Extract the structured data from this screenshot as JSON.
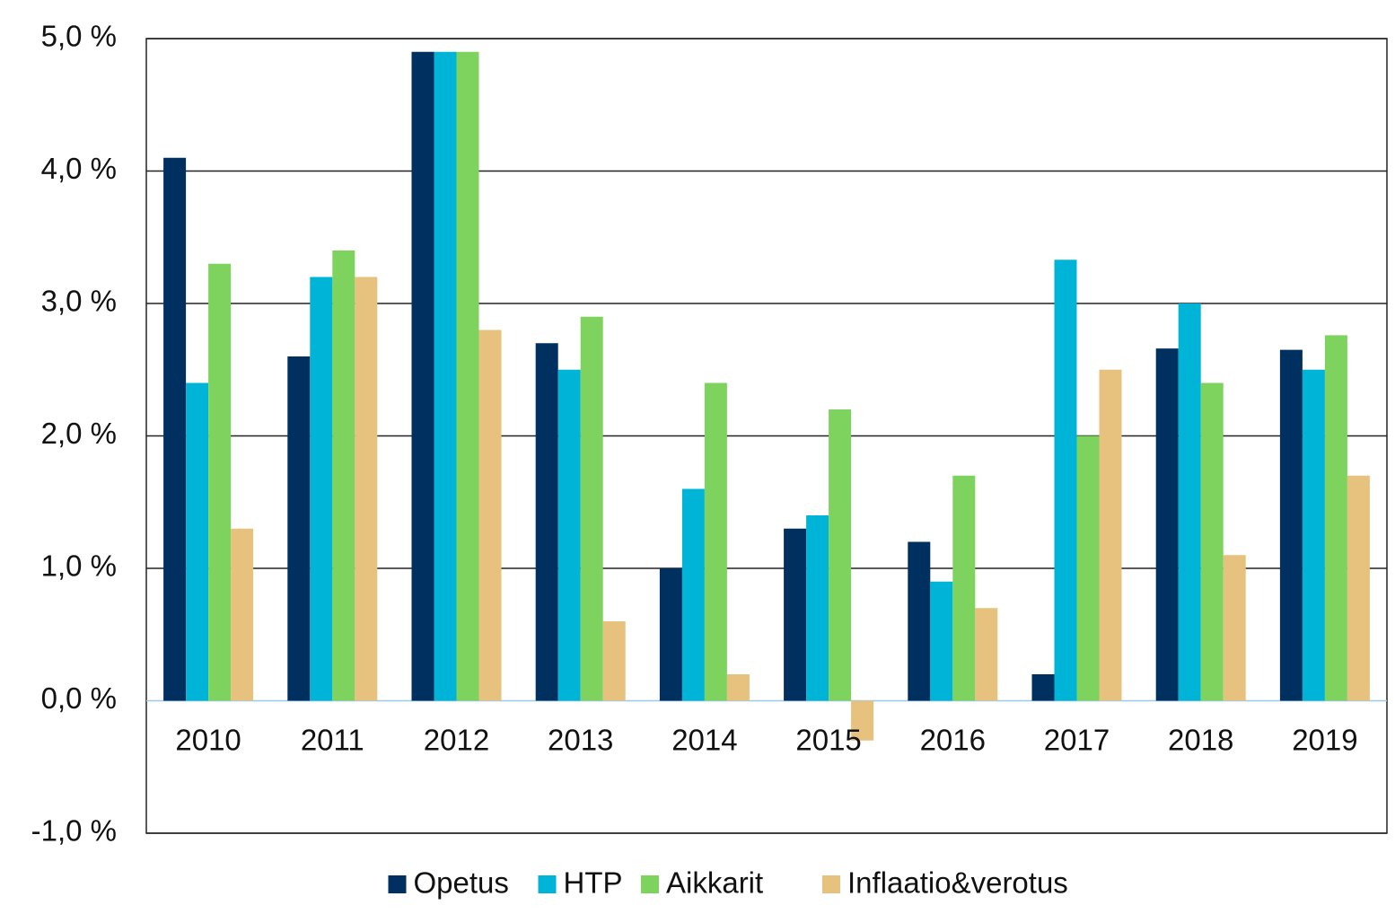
{
  "chart_data": {
    "type": "bar",
    "categories": [
      "2010",
      "2011",
      "2012",
      "2013",
      "2014",
      "2015",
      "2016",
      "2017",
      "2018",
      "2019"
    ],
    "series": [
      {
        "name": "Opetus",
        "color": "#00305f",
        "values": [
          4.1,
          2.6,
          4.9,
          2.7,
          1.0,
          1.3,
          1.2,
          0.2,
          2.66,
          2.65
        ]
      },
      {
        "name": "HTP",
        "color": "#00b4d8",
        "values": [
          2.4,
          3.2,
          4.9,
          2.5,
          1.6,
          1.4,
          0.9,
          3.33,
          3.0,
          2.5
        ]
      },
      {
        "name": "Aikkarit",
        "color": "#7ed35f",
        "values": [
          3.3,
          3.4,
          4.9,
          2.9,
          2.4,
          2.2,
          1.7,
          2.0,
          2.4,
          2.76
        ]
      },
      {
        "name": "Inflaatio&verotus",
        "color": "#e6c27e",
        "values": [
          1.3,
          3.2,
          2.8,
          0.6,
          0.2,
          -0.3,
          0.7,
          2.5,
          1.1,
          1.7
        ]
      }
    ],
    "ylim": [
      -1,
      5
    ],
    "yticks": [
      {
        "value": -1,
        "label": "-1,0 %"
      },
      {
        "value": 0,
        "label": "0,0 %"
      },
      {
        "value": 1,
        "label": "1,0 %"
      },
      {
        "value": 2,
        "label": "2,0 %"
      },
      {
        "value": 3,
        "label": "3,0 %"
      },
      {
        "value": 4,
        "label": "4,0 %"
      },
      {
        "value": 5,
        "label": "5,0 %"
      }
    ],
    "grid": true,
    "legend": "bottom"
  }
}
